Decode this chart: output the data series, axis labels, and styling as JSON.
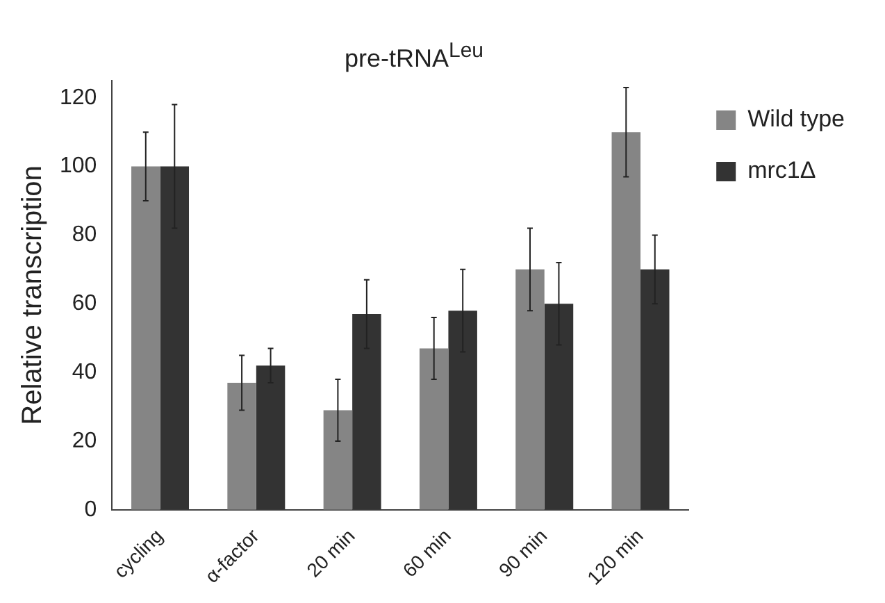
{
  "chart_data": {
    "type": "bar",
    "title": "pre-tRNA$^{Leu}$",
    "ylabel": "Relative transcription",
    "categories": [
      "cycling",
      "α-factor",
      "20 min",
      "60 min",
      "90 min",
      "120 min"
    ],
    "series": [
      {
        "name": "Wild type",
        "color": "#858585",
        "values": [
          100,
          37,
          29,
          47,
          70,
          110
        ],
        "errors": [
          [
            90,
            110
          ],
          [
            29,
            45
          ],
          [
            20,
            38
          ],
          [
            38,
            56
          ],
          [
            58,
            82
          ],
          [
            97,
            123
          ]
        ]
      },
      {
        "name": "mrc1Δ",
        "color": "#333333",
        "values": [
          100,
          42,
          57,
          58,
          60,
          70
        ],
        "errors": [
          [
            82,
            118
          ],
          [
            37,
            47
          ],
          [
            47,
            67
          ],
          [
            46,
            70
          ],
          [
            48,
            72
          ],
          [
            60,
            80
          ]
        ]
      }
    ],
    "ylim": [
      0,
      125
    ],
    "yticks": [
      0,
      20,
      40,
      60,
      80,
      100,
      120
    ],
    "grid": false,
    "legend": "right"
  }
}
